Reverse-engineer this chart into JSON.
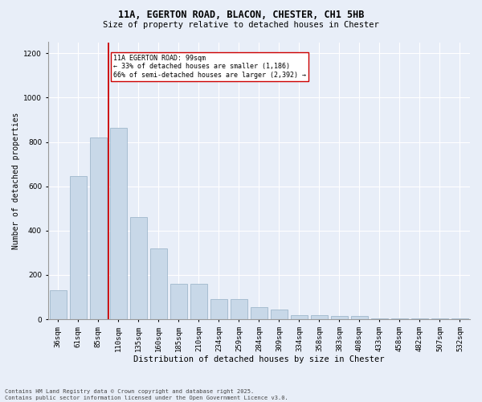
{
  "title1": "11A, EGERTON ROAD, BLACON, CHESTER, CH1 5HB",
  "title2": "Size of property relative to detached houses in Chester",
  "xlabel": "Distribution of detached houses by size in Chester",
  "ylabel": "Number of detached properties",
  "categories": [
    "36sqm",
    "61sqm",
    "85sqm",
    "110sqm",
    "135sqm",
    "160sqm",
    "185sqm",
    "210sqm",
    "234sqm",
    "259sqm",
    "284sqm",
    "309sqm",
    "334sqm",
    "358sqm",
    "383sqm",
    "408sqm",
    "433sqm",
    "458sqm",
    "482sqm",
    "507sqm",
    "532sqm"
  ],
  "values": [
    130,
    645,
    820,
    865,
    460,
    320,
    160,
    160,
    90,
    90,
    55,
    45,
    20,
    20,
    15,
    15,
    5,
    5,
    3,
    3,
    5
  ],
  "bar_color": "#c8d8e8",
  "bar_edge_color": "#a0b8cc",
  "vline_color": "#cc0000",
  "annotation_text": "11A EGERTON ROAD: 99sqm\n← 33% of detached houses are smaller (1,186)\n66% of semi-detached houses are larger (2,392) →",
  "annotation_box_color": "#ffffff",
  "annotation_box_edge": "#cc0000",
  "ylim": [
    0,
    1250
  ],
  "yticks": [
    0,
    200,
    400,
    600,
    800,
    1000,
    1200
  ],
  "footnote": "Contains HM Land Registry data © Crown copyright and database right 2025.\nContains public sector information licensed under the Open Government Licence v3.0.",
  "background_color": "#e8eef8",
  "plot_background": "#e8eef8",
  "grid_color": "#ffffff",
  "title1_fontsize": 8.5,
  "title2_fontsize": 7.5,
  "xlabel_fontsize": 7.5,
  "ylabel_fontsize": 7.0,
  "tick_fontsize": 6.5,
  "annot_fontsize": 6.0,
  "footnote_fontsize": 5.0
}
